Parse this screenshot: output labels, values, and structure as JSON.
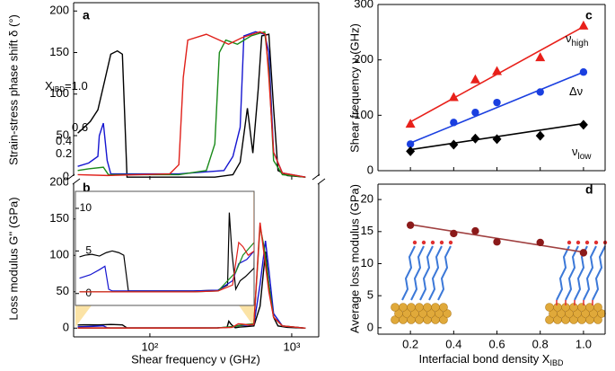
{
  "chart_data": [
    {
      "type": "line",
      "label": "a",
      "ylabel": "Strain-stress phase shift δ (°)",
      "xscale": "log",
      "xlim": [
        29,
        1550
      ],
      "ylim": [
        -3,
        210
      ],
      "xticks": [
        100,
        1000
      ],
      "xtick_labels": false,
      "yticks": [
        0,
        50,
        100,
        150,
        200
      ],
      "label_prefix": {
        "text": "X",
        "sub": "IBD",
        "suffix": "="
      },
      "series": [
        {
          "name": "1.0",
          "color": "#000000",
          "x": [
            31,
            34,
            38,
            43,
            48,
            53,
            59,
            64,
            69,
            89,
            160,
            287,
            385,
            433,
            487,
            532,
            580,
            615,
            690,
            745,
            800,
            930,
            1250
          ],
          "values": [
            53,
            59,
            67,
            81,
            116,
            148,
            152,
            148,
            0,
            0,
            0,
            0,
            3,
            18,
            83,
            29,
            105,
            170,
            172,
            83,
            8,
            2,
            0
          ]
        },
        {
          "name": "0.6",
          "color": "#1515d0",
          "x": [
            31,
            37,
            43,
            44,
            47,
            50,
            53,
            77,
            160,
            333,
            385,
            433,
            460,
            556,
            645,
            690,
            745,
            860,
            1250
          ],
          "values": [
            13,
            17,
            25,
            50,
            65,
            20,
            4,
            4,
            4,
            8,
            25,
            60,
            170,
            175,
            172,
            150,
            30,
            5,
            0
          ]
        },
        {
          "name": "0.4",
          "color": "#1a8a1a",
          "x": [
            31,
            37,
            47,
            51,
            77,
            160,
            250,
            287,
            309,
            343,
            414,
            516,
            645,
            690,
            745,
            860,
            1250
          ],
          "values": [
            8,
            10,
            12,
            3,
            3,
            3,
            8,
            40,
            150,
            165,
            160,
            170,
            175,
            130,
            20,
            3,
            0
          ]
        },
        {
          "name": "0.2",
          "color": "#e0201a",
          "x": [
            31,
            50,
            138,
            160,
            172,
            185,
            250,
            359,
            447,
            598,
            653,
            690,
            745,
            860,
            1250
          ],
          "values": [
            3,
            2,
            4,
            15,
            120,
            165,
            172,
            160,
            168,
            175,
            172,
            120,
            30,
            5,
            0
          ]
        }
      ]
    },
    {
      "type": "line",
      "label": "b",
      "ylabel": "Loss modulus G'' (GPa)",
      "xlabel": "Shear frequency ν (GHz)",
      "xscale": "log",
      "xlim": [
        29,
        1550
      ],
      "ylim": [
        -12,
        204
      ],
      "xticks": [
        {
          "value": 100,
          "label": "10²"
        },
        {
          "value": 1000,
          "label": "10³"
        }
      ],
      "yticks": [
        0,
        50,
        100,
        150,
        200
      ],
      "inset": {
        "xlim": [
          29,
          540
        ],
        "ylim": [
          -1.4,
          12
        ],
        "yticks": [
          0,
          5,
          10
        ]
      },
      "series": [
        {
          "color": "#000000",
          "x": [
            31,
            34,
            38,
            43,
            48,
            53,
            59,
            64,
            69,
            100,
            200,
            300,
            350,
            360,
            375,
            400,
            430,
            470,
            541,
            598,
            653,
            690,
            745,
            800,
            930,
            1250
          ],
          "values": [
            4.3,
            4.5,
            4.6,
            4.4,
            4.8,
            5,
            4.8,
            4.5,
            0.3,
            0.3,
            0.3,
            0.4,
            1,
            9.5,
            5,
            0.5,
            1.5,
            2,
            3,
            30,
            105,
            60,
            15,
            3,
            1,
            0
          ]
        },
        {
          "color": "#1515d0",
          "x": [
            31,
            37,
            43,
            47,
            50,
            53,
            100,
            200,
            300,
            380,
            420,
            480,
            541,
            598,
            653,
            690,
            745,
            860,
            1250
          ],
          "values": [
            1.8,
            2.2,
            2.8,
            3.2,
            0.5,
            0.3,
            0.3,
            0.3,
            0.4,
            1.5,
            3.5,
            4,
            5,
            60,
            120,
            80,
            20,
            3,
            0
          ]
        },
        {
          "color": "#1a8a1a",
          "x": [
            31,
            100,
            200,
            300,
            350,
            400,
            450,
            541,
            598,
            640,
            690,
            745,
            860,
            1250
          ],
          "values": [
            0.2,
            0.2,
            0.2,
            0.3,
            1.5,
            2.5,
            4.5,
            6,
            140,
            110,
            60,
            15,
            3,
            0
          ]
        },
        {
          "color": "#e0201a",
          "x": [
            31,
            100,
            200,
            300,
            380,
            420,
            450,
            490,
            541,
            598,
            640,
            690,
            745,
            860,
            1250
          ],
          "values": [
            0.2,
            0.2,
            0.2,
            0.3,
            1,
            6,
            5.5,
            4.5,
            5,
            145,
            100,
            50,
            15,
            3,
            0
          ]
        }
      ]
    },
    {
      "type": "scatter",
      "label": "c",
      "ylabel": "Shear frequency ν (GHz)",
      "xlim": [
        0.05,
        1.1
      ],
      "ylim": [
        0,
        300
      ],
      "xticks": [
        0.2,
        0.4,
        0.6,
        0.8,
        1
      ],
      "xtick_labels": false,
      "yticks": [
        0,
        100,
        200,
        300
      ],
      "series": [
        {
          "name": "ν",
          "name_sub": "high",
          "color": "#e8201a",
          "marker": "triangle",
          "x": [
            0.2,
            0.4,
            0.5,
            0.6,
            0.8,
            1.0
          ],
          "values": [
            85,
            133,
            165,
            180,
            205,
            262
          ],
          "fit": {
            "x": [
              0.2,
              1.0
            ],
            "values": [
              88,
              260
            ]
          }
        },
        {
          "name": "Δν",
          "color": "#1a3fe0",
          "marker": "circle",
          "x": [
            0.2,
            0.4,
            0.5,
            0.6,
            0.8,
            1.0
          ],
          "values": [
            48,
            87,
            105,
            123,
            142,
            178
          ],
          "fit": {
            "x": [
              0.2,
              1.0
            ],
            "values": [
              50,
              178
            ]
          }
        },
        {
          "name": "ν",
          "name_sub": "low",
          "color": "#000000",
          "marker": "diamond",
          "x": [
            0.2,
            0.4,
            0.5,
            0.6,
            0.8,
            1.0
          ],
          "values": [
            35,
            47,
            58,
            57,
            63,
            83
          ],
          "fit": {
            "x": [
              0.2,
              1.0
            ],
            "values": [
              38,
              85
            ]
          }
        }
      ]
    },
    {
      "type": "scatter",
      "label": "d",
      "ylabel": "Average loss modulus (GPa)",
      "xlabel": {
        "text": "Interfacial bond density X",
        "sub": "IBD"
      },
      "xlim": [
        0.05,
        1.1
      ],
      "ylim": [
        -1,
        22.4
      ],
      "xticks": [
        0.2,
        0.4,
        0.6,
        0.8,
        {
          "value": 1,
          "label": "1.0"
        }
      ],
      "yticks": [
        0,
        5,
        10,
        15,
        20
      ],
      "series": [
        {
          "color": "#8b1a1a",
          "marker": "circle",
          "x": [
            0.2,
            0.4,
            0.5,
            0.6,
            0.8,
            1.0
          ],
          "values": [
            16,
            14.7,
            15.1,
            13.4,
            13.3,
            11.7
          ],
          "fit": {
            "x": [
              0.2,
              1.0
            ],
            "values": [
              16.1,
              11.8
            ],
            "color": "#a04040"
          }
        }
      ]
    }
  ]
}
